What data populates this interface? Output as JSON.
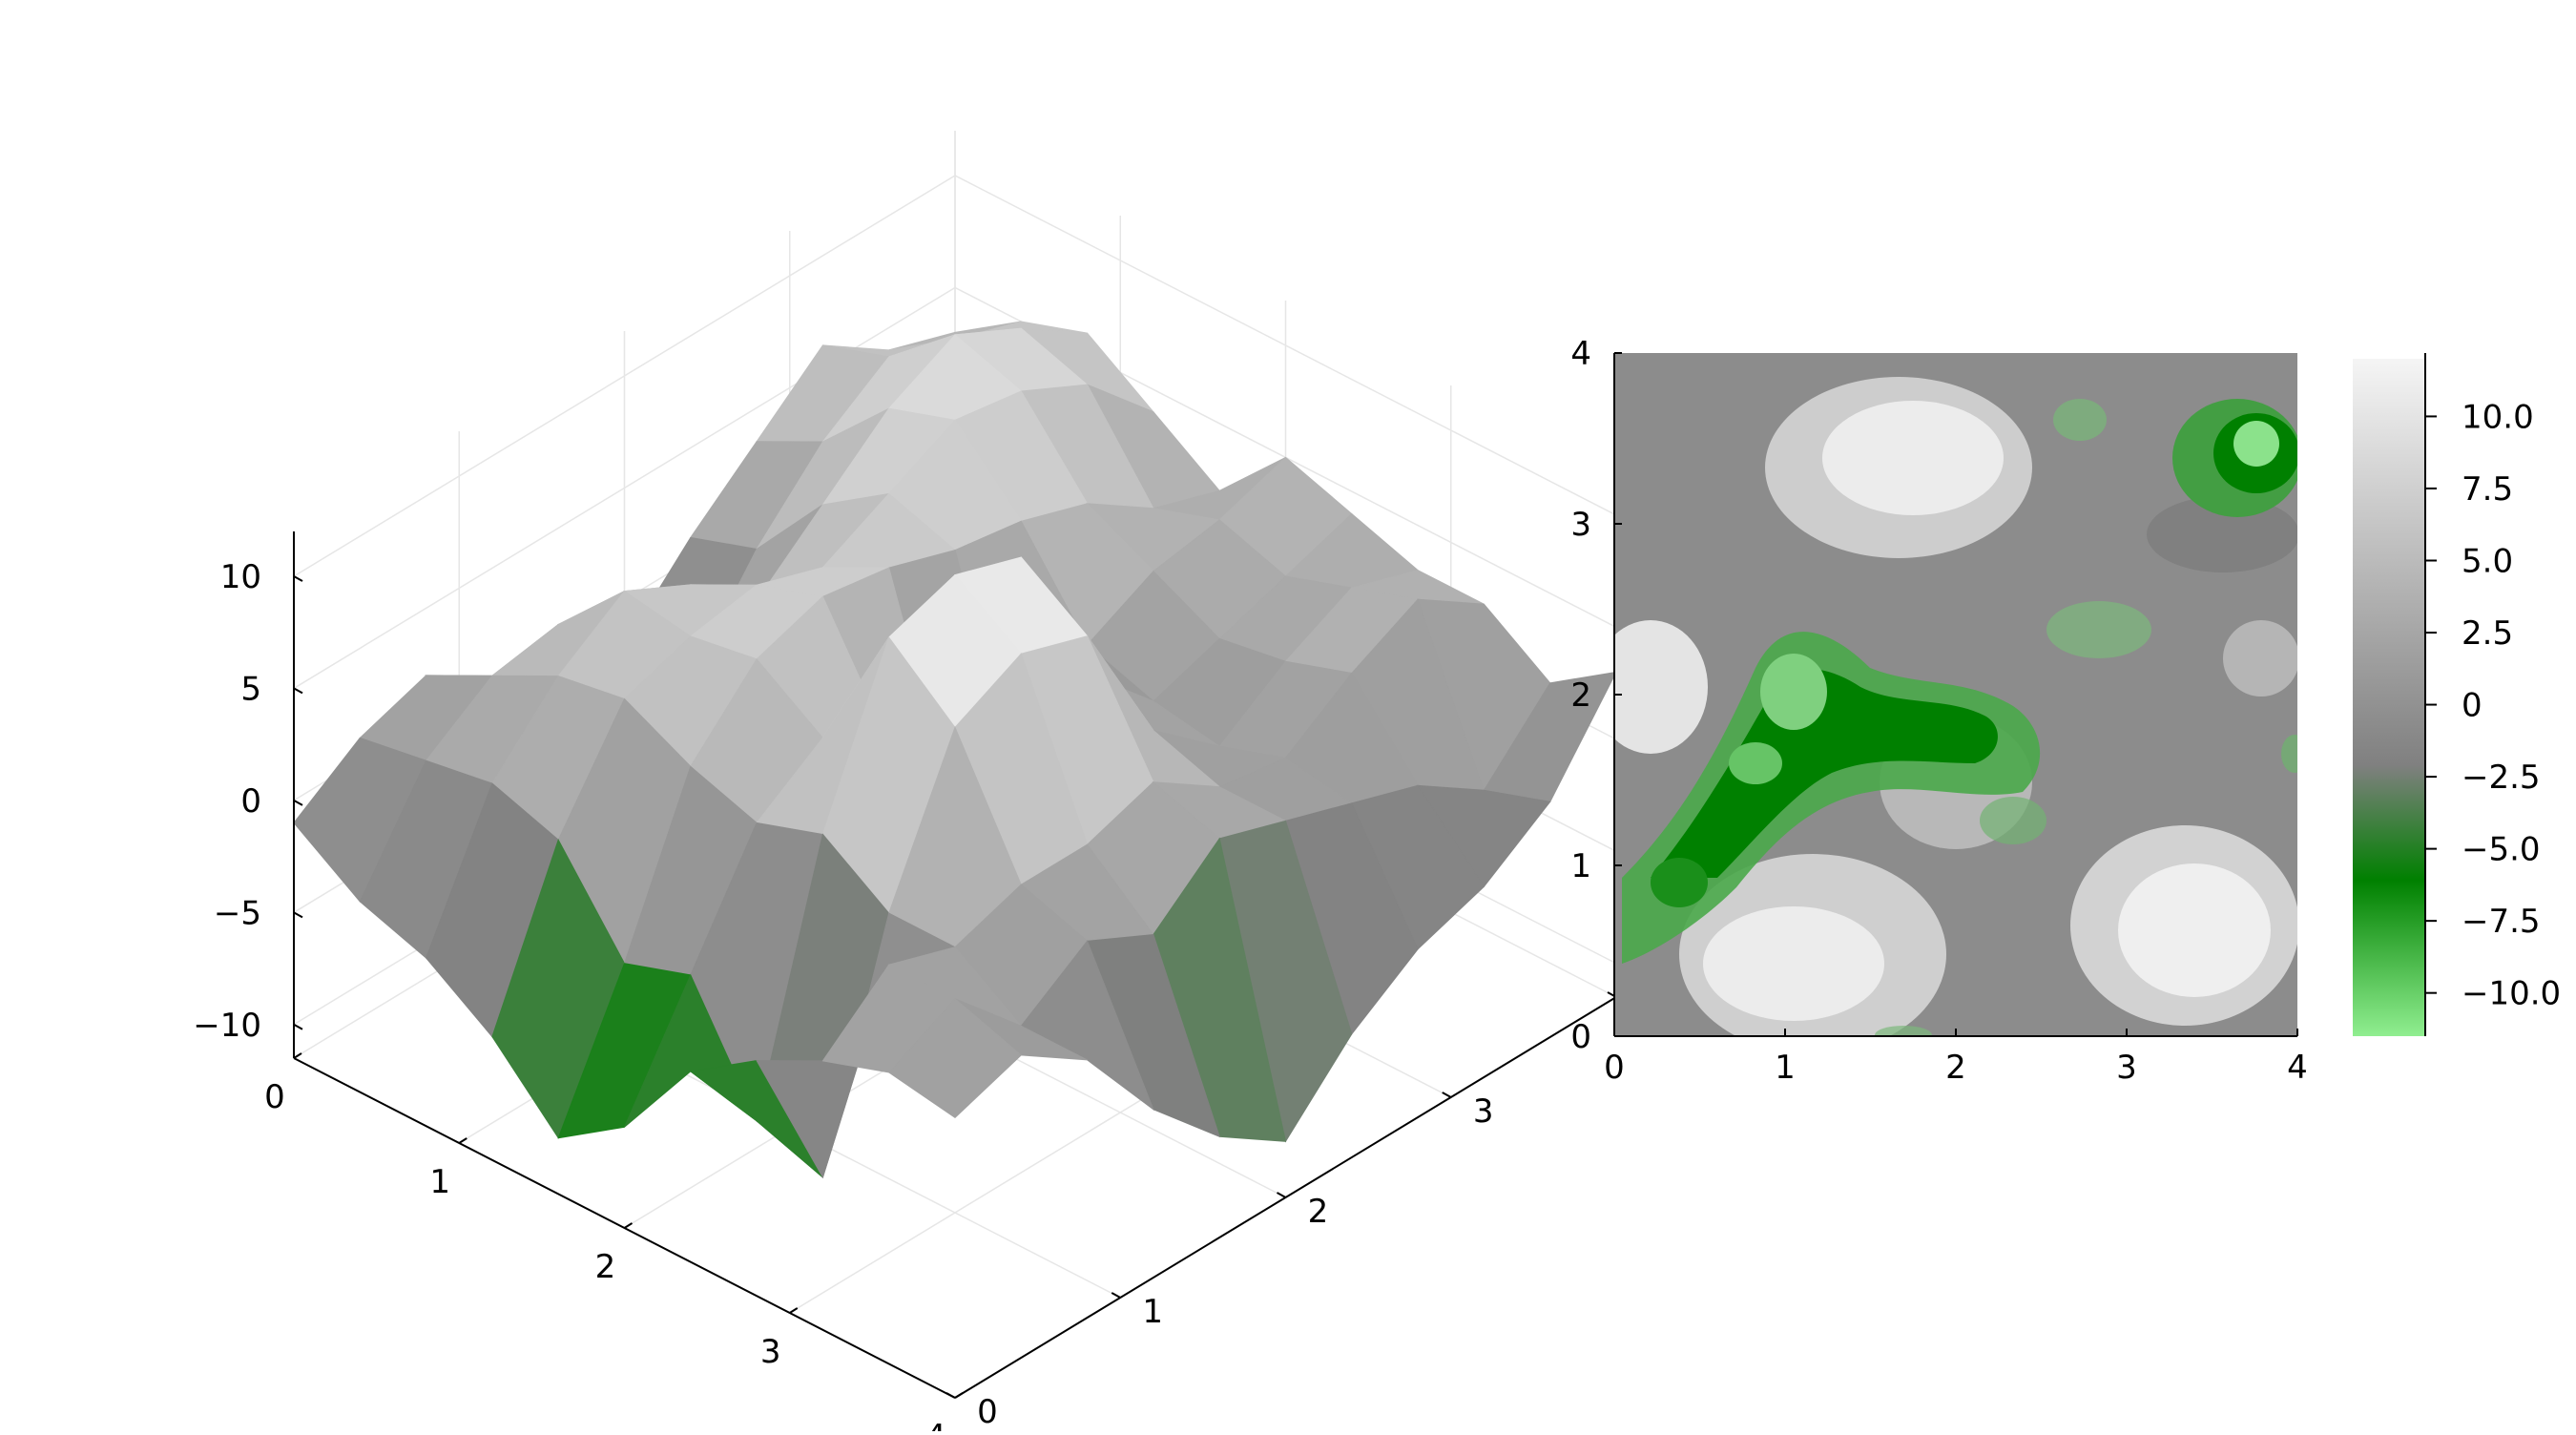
{
  "chart_data": [
    {
      "type": "surface",
      "x": [
        0,
        1,
        2,
        3,
        4
      ],
      "y": [
        0,
        1,
        2,
        3,
        4
      ],
      "x_ticks": [
        "0",
        "1",
        "2",
        "3",
        "4"
      ],
      "y_ticks": [
        "0",
        "1",
        "2",
        "3",
        "4"
      ],
      "z_ticks": [
        "−10",
        "−5",
        "0",
        "5",
        "10"
      ],
      "z_tick_values": [
        -10,
        -5,
        0,
        5,
        10
      ],
      "xlim": [
        0,
        4
      ],
      "ylim": [
        0,
        4
      ],
      "zlim": [
        -11.5,
        12
      ],
      "grid": true,
      "colormap": [
        "#90ee90",
        "#008000",
        "#808080",
        "#f5f5f5"
      ],
      "z_grid": [
        [
          -1.0,
          1.0,
          2.0,
          -2.0,
          -5.0,
          -2.0,
          1.0,
          3.5,
          6.0,
          4.0,
          3.0
        ],
        [
          -3.0,
          1.5,
          3.5,
          4.0,
          1.0,
          -2.0,
          2.0,
          5.0,
          7.0,
          6.0,
          5.0
        ],
        [
          -4.0,
          2.0,
          5.0,
          7.0,
          5.5,
          3.0,
          5.5,
          8.0,
          9.5,
          8.0,
          6.0
        ],
        [
          -6.0,
          1.0,
          5.5,
          6.5,
          7.0,
          6.0,
          7.5,
          9.0,
          8.5,
          7.0,
          4.0
        ],
        [
          -9.0,
          -3.0,
          4.0,
          7.0,
          8.0,
          7.5,
          6.5,
          6.0,
          5.0,
          3.0,
          2.0
        ],
        [
          -7.0,
          -2.0,
          3.0,
          5.0,
          3.0,
          -2.0,
          -3.0,
          2.0,
          3.5,
          4.0,
          5.0
        ],
        [
          -3.0,
          -7.0,
          4.0,
          11.0,
          12.0,
          11.0,
          4.0,
          1.0,
          2.0,
          3.0,
          4.0
        ],
        [
          -1.0,
          -8.0,
          2.0,
          8.5,
          10.0,
          9.0,
          3.0,
          0.5,
          2.5,
          4.0,
          3.0
        ],
        [
          0.5,
          3.0,
          2.0,
          3.0,
          3.0,
          4.0,
          2.0,
          1.5,
          3.5,
          5.0,
          3.0
        ],
        [
          1.5,
          3.0,
          0.0,
          2.0,
          0.5,
          3.0,
          2.0,
          1.0,
          0.0,
          -2.0,
          1.0
        ],
        [
          1.0,
          2.0,
          0.0,
          -4.0,
          -7.0,
          -9.0,
          -6.0,
          -4.0,
          -3.0,
          -1.0,
          3.0
        ]
      ]
    },
    {
      "type": "heatmap",
      "x_ticks": [
        "0",
        "1",
        "2",
        "3",
        "4"
      ],
      "y_ticks": [
        "0",
        "1",
        "2",
        "3",
        "4"
      ],
      "xlim": [
        0,
        4
      ],
      "ylim": [
        0,
        4
      ],
      "colorbar": {
        "ticks": [
          "10.0",
          "7.5",
          "5.0",
          "2.5",
          "0",
          "−2.5",
          "−5.0",
          "−7.5",
          "−10.0"
        ],
        "tick_values": [
          10,
          7.5,
          5,
          2.5,
          0,
          -2.5,
          -5,
          -7.5,
          -10
        ],
        "range": [
          -11.5,
          12
        ],
        "placement": "right"
      }
    }
  ]
}
